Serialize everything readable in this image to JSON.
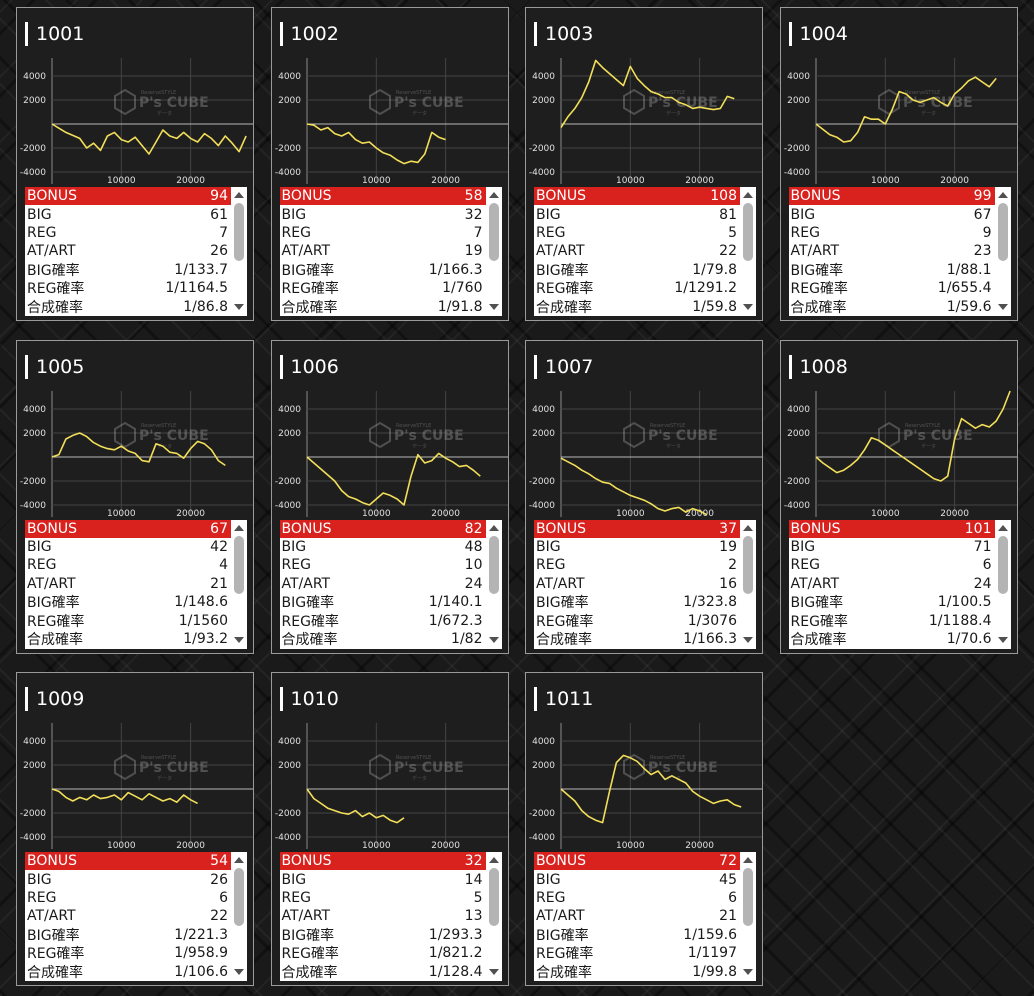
{
  "colors": {
    "bonus_row": "#d9211e",
    "line": "#f2de59",
    "card_bg": "#1e1e1e",
    "card_border": "#9a9a9a"
  },
  "icons": {
    "watermark": "ps-cube-logo",
    "scroll_up": "triangle-up-icon",
    "scroll_down": "triangle-down-icon"
  },
  "labels": {
    "bonus": "BONUS",
    "big": "BIG",
    "reg": "REG",
    "atart": "AT/ART",
    "big_rate": "BIG確率",
    "reg_rate": "REG確率",
    "combined_rate": "合成確率"
  },
  "watermark": {
    "logo_text": "P's CUBE",
    "top_text": "ReserveSTYLE",
    "bottom_text": "データ"
  },
  "machines": [
    {
      "id": "1001",
      "bonus": "94",
      "big": "61",
      "reg": "7",
      "atart": "26",
      "big_rate": "1/133.7",
      "reg_rate": "1/1164.5",
      "combined_rate": "1/86.8"
    },
    {
      "id": "1002",
      "bonus": "58",
      "big": "32",
      "reg": "7",
      "atart": "19",
      "big_rate": "1/166.3",
      "reg_rate": "1/760",
      "combined_rate": "1/91.8"
    },
    {
      "id": "1003",
      "bonus": "108",
      "big": "81",
      "reg": "5",
      "atart": "22",
      "big_rate": "1/79.8",
      "reg_rate": "1/1291.2",
      "combined_rate": "1/59.8"
    },
    {
      "id": "1004",
      "bonus": "99",
      "big": "67",
      "reg": "9",
      "atart": "23",
      "big_rate": "1/88.1",
      "reg_rate": "1/655.4",
      "combined_rate": "1/59.6"
    },
    {
      "id": "1005",
      "bonus": "67",
      "big": "42",
      "reg": "4",
      "atart": "21",
      "big_rate": "1/148.6",
      "reg_rate": "1/1560",
      "combined_rate": "1/93.2"
    },
    {
      "id": "1006",
      "bonus": "82",
      "big": "48",
      "reg": "10",
      "atart": "24",
      "big_rate": "1/140.1",
      "reg_rate": "1/672.3",
      "combined_rate": "1/82"
    },
    {
      "id": "1007",
      "bonus": "37",
      "big": "19",
      "reg": "2",
      "atart": "16",
      "big_rate": "1/323.8",
      "reg_rate": "1/3076",
      "combined_rate": "1/166.3"
    },
    {
      "id": "1008",
      "bonus": "101",
      "big": "71",
      "reg": "6",
      "atart": "24",
      "big_rate": "1/100.5",
      "reg_rate": "1/1188.4",
      "combined_rate": "1/70.6"
    },
    {
      "id": "1009",
      "bonus": "54",
      "big": "26",
      "reg": "6",
      "atart": "22",
      "big_rate": "1/221.3",
      "reg_rate": "1/958.9",
      "combined_rate": "1/106.6"
    },
    {
      "id": "1010",
      "bonus": "32",
      "big": "14",
      "reg": "5",
      "atart": "13",
      "big_rate": "1/293.3",
      "reg_rate": "1/821.2",
      "combined_rate": "1/128.4"
    },
    {
      "id": "1011",
      "bonus": "72",
      "big": "45",
      "reg": "6",
      "atart": "21",
      "big_rate": "1/159.6",
      "reg_rate": "1/1197",
      "combined_rate": "1/99.8"
    }
  ],
  "chart_data": {
    "type": "line",
    "x_ticks": [
      "10000",
      "20000"
    ],
    "y_ticks": [
      "4000",
      "2000",
      "-2000",
      "-4000"
    ],
    "xlim": [
      0,
      29000
    ],
    "ylim": [
      -5000,
      5500
    ],
    "charts": [
      {
        "machine": "1001",
        "x": [
          0,
          2000,
          4000,
          5000,
          6000,
          7000,
          8000,
          9000,
          10000,
          11000,
          12000,
          13000,
          14000,
          15000,
          16000,
          17000,
          18000,
          19000,
          20000,
          21000,
          22000,
          23000,
          24000,
          25000,
          26000,
          27000,
          28000
        ],
        "y": [
          0,
          -700,
          -1200,
          -2000,
          -1600,
          -2200,
          -1000,
          -700,
          -1300,
          -1500,
          -1100,
          -1800,
          -2500,
          -1500,
          -500,
          -1000,
          -1200,
          -700,
          -1200,
          -1500,
          -800,
          -1200,
          -1800,
          -1000,
          -1600,
          -2300,
          -1000
        ]
      },
      {
        "machine": "1002",
        "x": [
          0,
          1000,
          2000,
          3000,
          4000,
          5000,
          6000,
          7000,
          8000,
          9000,
          10000,
          11000,
          12000,
          13000,
          14000,
          15000,
          16000,
          17000,
          18000,
          19000,
          20000
        ],
        "y": [
          0,
          -100,
          -500,
          -300,
          -800,
          -1000,
          -700,
          -1300,
          -1600,
          -1500,
          -2000,
          -2400,
          -2600,
          -3000,
          -3300,
          -3100,
          -3200,
          -2500,
          -700,
          -1100,
          -1300
        ]
      },
      {
        "machine": "1003",
        "x": [
          0,
          1000,
          2000,
          3000,
          4000,
          5000,
          6000,
          7000,
          8000,
          9000,
          10000,
          11000,
          12000,
          13000,
          14000,
          15000,
          16000,
          17000,
          18000,
          19000,
          20000,
          21000,
          22000,
          23000,
          24000,
          25000
        ],
        "y": [
          -300,
          600,
          1300,
          2200,
          3500,
          5300,
          4700,
          4200,
          3700,
          3200,
          4800,
          3800,
          3200,
          2700,
          2500,
          2200,
          2200,
          1800,
          1600,
          1300,
          1400,
          1300,
          1200,
          1300,
          2300,
          2100
        ]
      },
      {
        "machine": "1004",
        "x": [
          0,
          2000,
          3000,
          4000,
          5000,
          6000,
          7000,
          8000,
          9000,
          10000,
          11000,
          12000,
          13000,
          14000,
          15000,
          16000,
          17000,
          18000,
          19000,
          20000,
          21000,
          22000,
          23000,
          24000,
          25000,
          26000
        ],
        "y": [
          0,
          -900,
          -1100,
          -1500,
          -1400,
          -700,
          600,
          400,
          400,
          0,
          1200,
          2700,
          2500,
          2000,
          1800,
          2000,
          2200,
          1800,
          1500,
          2500,
          3000,
          3600,
          3900,
          3500,
          3100,
          3800
        ]
      },
      {
        "machine": "1005",
        "x": [
          0,
          1000,
          2000,
          3000,
          4000,
          5000,
          6000,
          7000,
          8000,
          9000,
          10000,
          11000,
          12000,
          13000,
          14000,
          15000,
          16000,
          17000,
          18000,
          19000,
          20000,
          21000,
          22000,
          23000,
          24000,
          25000
        ],
        "y": [
          0,
          200,
          1500,
          1800,
          2000,
          1700,
          1200,
          900,
          700,
          600,
          900,
          500,
          300,
          -300,
          -400,
          1100,
          900,
          400,
          300,
          -100,
          700,
          1300,
          1100,
          600,
          -300,
          -700
        ]
      },
      {
        "machine": "1006",
        "x": [
          0,
          1000,
          2000,
          3000,
          4000,
          5000,
          6000,
          7000,
          8000,
          9000,
          10000,
          11000,
          12000,
          13000,
          14000,
          15000,
          16000,
          17000,
          18000,
          19000,
          20000,
          21000,
          22000,
          23000,
          24000,
          25000
        ],
        "y": [
          0,
          -500,
          -1000,
          -1500,
          -2000,
          -2800,
          -3300,
          -3500,
          -3800,
          -4000,
          -3500,
          -3000,
          -3200,
          -3500,
          -4000,
          -1600,
          200,
          -500,
          -300,
          300,
          -100,
          -400,
          -800,
          -700,
          -1100,
          -1600
        ]
      },
      {
        "machine": "1007",
        "x": [
          0,
          1000,
          2000,
          3000,
          4000,
          5000,
          6000,
          7000,
          8000,
          9000,
          10000,
          11000,
          12000,
          13000,
          14000,
          15000,
          16000,
          17000,
          18000,
          19000,
          20000,
          21000
        ],
        "y": [
          -100,
          -400,
          -700,
          -1100,
          -1400,
          -1800,
          -2100,
          -2200,
          -2600,
          -2900,
          -3200,
          -3400,
          -3600,
          -3900,
          -4300,
          -4500,
          -4300,
          -4200,
          -4600,
          -4300,
          -4500,
          -4800
        ]
      },
      {
        "machine": "1008",
        "x": [
          0,
          1000,
          2000,
          3000,
          4000,
          5000,
          6000,
          7000,
          8000,
          9000,
          10000,
          11000,
          12000,
          13000,
          14000,
          15000,
          16000,
          17000,
          18000,
          19000,
          20000,
          21000,
          22000,
          23000,
          24000,
          25000,
          26000,
          27000,
          28000
        ],
        "y": [
          0,
          -500,
          -900,
          -1300,
          -1100,
          -700,
          -200,
          600,
          1600,
          1400,
          1000,
          600,
          200,
          -200,
          -600,
          -1000,
          -1400,
          -1800,
          -2000,
          -1600,
          1500,
          3200,
          2800,
          2400,
          2700,
          2500,
          3000,
          4000,
          5500
        ]
      },
      {
        "machine": "1009",
        "x": [
          0,
          1000,
          2000,
          3000,
          4000,
          5000,
          6000,
          7000,
          8000,
          9000,
          10000,
          11000,
          12000,
          13000,
          14000,
          15000,
          16000,
          17000,
          18000,
          19000,
          20000,
          21000
        ],
        "y": [
          0,
          -200,
          -700,
          -1000,
          -700,
          -900,
          -500,
          -800,
          -700,
          -500,
          -900,
          -300,
          -600,
          -900,
          -400,
          -700,
          -1000,
          -800,
          -1100,
          -500,
          -900,
          -1200
        ]
      },
      {
        "machine": "1010",
        "x": [
          0,
          1000,
          2000,
          3000,
          4000,
          5000,
          6000,
          7000,
          8000,
          9000,
          10000,
          11000,
          12000,
          13000,
          14000
        ],
        "y": [
          0,
          -800,
          -1200,
          -1600,
          -1800,
          -2000,
          -2100,
          -1800,
          -2300,
          -2000,
          -2400,
          -2200,
          -2600,
          -2800,
          -2400
        ]
      },
      {
        "machine": "1011",
        "x": [
          0,
          1000,
          2000,
          3000,
          4000,
          5000,
          6000,
          7000,
          8000,
          9000,
          10000,
          11000,
          12000,
          13000,
          14000,
          15000,
          16000,
          17000,
          18000,
          19000,
          20000,
          21000,
          22000,
          23000,
          24000,
          25000,
          26000
        ],
        "y": [
          0,
          -500,
          -1000,
          -1800,
          -2300,
          -2600,
          -2800,
          -200,
          2200,
          2800,
          2600,
          2300,
          1700,
          1200,
          1500,
          800,
          1100,
          800,
          500,
          -200,
          -600,
          -900,
          -1200,
          -1000,
          -900,
          -1300,
          -1500
        ]
      }
    ]
  }
}
